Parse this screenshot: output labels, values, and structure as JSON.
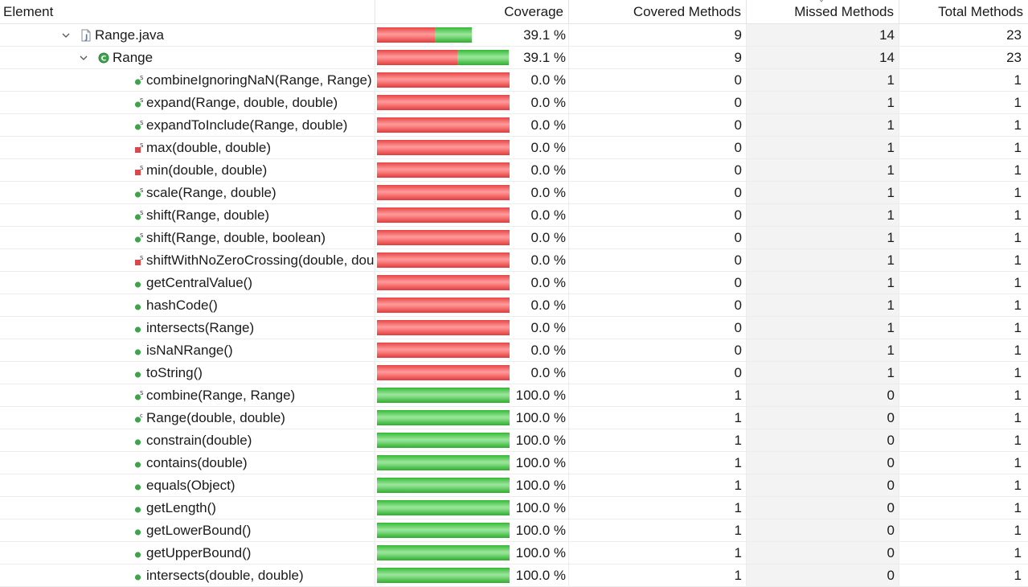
{
  "header": {
    "element": "Element",
    "coverage": "Coverage",
    "covered_methods": "Covered Methods",
    "missed_methods": "Missed Methods",
    "total_methods": "Total Methods"
  },
  "colors": {
    "missed": "#ff6464",
    "covered": "#4cc84c"
  },
  "rows": [
    {
      "name": "Range.java",
      "kind": "file",
      "indent": 0,
      "expanded": true,
      "coverage": 39.1,
      "coverage_text": "39.1 %",
      "covered": "9",
      "missed": "14",
      "total": "23",
      "icon": "java-file-icon"
    },
    {
      "name": "Range",
      "kind": "class",
      "indent": 1,
      "expanded": true,
      "coverage": 39.1,
      "coverage_text": "39.1 %",
      "covered": "9",
      "missed": "14",
      "total": "23",
      "icon": "class-icon"
    },
    {
      "name": "combineIgnoringNaN(Range, Range)",
      "kind": "method",
      "indent": 2,
      "coverage": 0,
      "coverage_text": "0.0 %",
      "covered": "0",
      "missed": "1",
      "total": "1",
      "icon": "public-static-method-icon"
    },
    {
      "name": "expand(Range, double, double)",
      "kind": "method",
      "indent": 2,
      "coverage": 0,
      "coverage_text": "0.0 %",
      "covered": "0",
      "missed": "1",
      "total": "1",
      "icon": "public-static-method-icon"
    },
    {
      "name": "expandToInclude(Range, double)",
      "kind": "method",
      "indent": 2,
      "coverage": 0,
      "coverage_text": "0.0 %",
      "covered": "0",
      "missed": "1",
      "total": "1",
      "icon": "public-static-method-icon"
    },
    {
      "name": "max(double, double)",
      "kind": "method",
      "indent": 2,
      "coverage": 0,
      "coverage_text": "0.0 %",
      "covered": "0",
      "missed": "1",
      "total": "1",
      "icon": "private-static-method-icon"
    },
    {
      "name": "min(double, double)",
      "kind": "method",
      "indent": 2,
      "coverage": 0,
      "coverage_text": "0.0 %",
      "covered": "0",
      "missed": "1",
      "total": "1",
      "icon": "private-static-method-icon"
    },
    {
      "name": "scale(Range, double)",
      "kind": "method",
      "indent": 2,
      "coverage": 0,
      "coverage_text": "0.0 %",
      "covered": "0",
      "missed": "1",
      "total": "1",
      "icon": "public-static-method-icon"
    },
    {
      "name": "shift(Range, double)",
      "kind": "method",
      "indent": 2,
      "coverage": 0,
      "coverage_text": "0.0 %",
      "covered": "0",
      "missed": "1",
      "total": "1",
      "icon": "public-static-method-icon"
    },
    {
      "name": "shift(Range, double, boolean)",
      "kind": "method",
      "indent": 2,
      "coverage": 0,
      "coverage_text": "0.0 %",
      "covered": "0",
      "missed": "1",
      "total": "1",
      "icon": "public-static-method-icon"
    },
    {
      "name": "shiftWithNoZeroCrossing(double, double, double)",
      "kind": "method",
      "indent": 2,
      "coverage": 0,
      "coverage_text": "0.0 %",
      "covered": "0",
      "missed": "1",
      "total": "1",
      "icon": "private-static-method-icon"
    },
    {
      "name": "getCentralValue()",
      "kind": "method",
      "indent": 2,
      "coverage": 0,
      "coverage_text": "0.0 %",
      "covered": "0",
      "missed": "1",
      "total": "1",
      "icon": "public-method-icon"
    },
    {
      "name": "hashCode()",
      "kind": "method",
      "indent": 2,
      "coverage": 0,
      "coverage_text": "0.0 %",
      "covered": "0",
      "missed": "1",
      "total": "1",
      "icon": "public-method-icon"
    },
    {
      "name": "intersects(Range)",
      "kind": "method",
      "indent": 2,
      "coverage": 0,
      "coverage_text": "0.0 %",
      "covered": "0",
      "missed": "1",
      "total": "1",
      "icon": "public-method-icon"
    },
    {
      "name": "isNaNRange()",
      "kind": "method",
      "indent": 2,
      "coverage": 0,
      "coverage_text": "0.0 %",
      "covered": "0",
      "missed": "1",
      "total": "1",
      "icon": "public-method-icon"
    },
    {
      "name": "toString()",
      "kind": "method",
      "indent": 2,
      "coverage": 0,
      "coverage_text": "0.0 %",
      "covered": "0",
      "missed": "1",
      "total": "1",
      "icon": "public-method-icon"
    },
    {
      "name": "combine(Range, Range)",
      "kind": "method",
      "indent": 2,
      "coverage": 100,
      "coverage_text": "100.0 %",
      "covered": "1",
      "missed": "0",
      "total": "1",
      "icon": "public-static-method-icon"
    },
    {
      "name": "Range(double, double)",
      "kind": "method",
      "indent": 2,
      "coverage": 100,
      "coverage_text": "100.0 %",
      "covered": "1",
      "missed": "0",
      "total": "1",
      "icon": "constructor-icon"
    },
    {
      "name": "constrain(double)",
      "kind": "method",
      "indent": 2,
      "coverage": 100,
      "coverage_text": "100.0 %",
      "covered": "1",
      "missed": "0",
      "total": "1",
      "icon": "public-method-icon"
    },
    {
      "name": "contains(double)",
      "kind": "method",
      "indent": 2,
      "coverage": 100,
      "coverage_text": "100.0 %",
      "covered": "1",
      "missed": "0",
      "total": "1",
      "icon": "public-method-icon"
    },
    {
      "name": "equals(Object)",
      "kind": "method",
      "indent": 2,
      "coverage": 100,
      "coverage_text": "100.0 %",
      "covered": "1",
      "missed": "0",
      "total": "1",
      "icon": "public-method-icon"
    },
    {
      "name": "getLength()",
      "kind": "method",
      "indent": 2,
      "coverage": 100,
      "coverage_text": "100.0 %",
      "covered": "1",
      "missed": "0",
      "total": "1",
      "icon": "public-method-icon"
    },
    {
      "name": "getLowerBound()",
      "kind": "method",
      "indent": 2,
      "coverage": 100,
      "coverage_text": "100.0 %",
      "covered": "1",
      "missed": "0",
      "total": "1",
      "icon": "public-method-icon"
    },
    {
      "name": "getUpperBound()",
      "kind": "method",
      "indent": 2,
      "coverage": 100,
      "coverage_text": "100.0 %",
      "covered": "1",
      "missed": "0",
      "total": "1",
      "icon": "public-method-icon"
    },
    {
      "name": "intersects(double, double)",
      "kind": "method",
      "indent": 2,
      "coverage": 100,
      "coverage_text": "100.0 %",
      "covered": "1",
      "missed": "0",
      "total": "1",
      "icon": "public-method-icon"
    }
  ]
}
